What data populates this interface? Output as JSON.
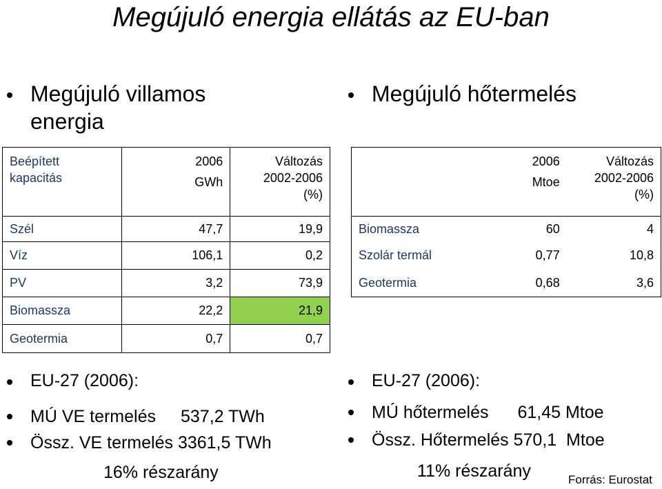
{
  "title": "Megújuló energia ellátás az EU-ban",
  "left": {
    "heading_line1": "Megújuló villamos",
    "heading_line2": "energia",
    "table": {
      "header": {
        "col0_line1": "Beépített",
        "col0_line2": "kapacitás",
        "col1_line1": "2006",
        "col1_line2": "GWh",
        "col2_line1": "Változás",
        "col2_line2": "2002-2006",
        "col2_line3": "(%)"
      },
      "rows": [
        {
          "label": "Szél",
          "value": "47,7",
          "change": "19,9"
        },
        {
          "label": "Víz",
          "value": "106,1",
          "change": "0,2"
        },
        {
          "label": "PV",
          "value": "3,2",
          "change": "73,9"
        },
        {
          "label": "Biomassza",
          "value": "22,2",
          "change": "21,9"
        },
        {
          "label": "Geotermia",
          "value": "0,7",
          "change": "0,7"
        }
      ]
    },
    "eu_heading": "EU-27 (2006):",
    "line1_label": "MÚ VE termelés",
    "line1_value": "537,2 TWh",
    "line2": "Össz. VE termelés 3361,5 TWh",
    "share": "16% részarány"
  },
  "right": {
    "heading": "Megújuló hőtermelés",
    "table": {
      "header": {
        "col1_line1": "2006",
        "col1_line2": "Mtoe",
        "col2_line1": "Változás",
        "col2_line2": "2002-2006",
        "col2_line3": "(%)"
      },
      "rows": [
        {
          "label": "Biomassza",
          "value": "60",
          "change": "4"
        },
        {
          "label": "Szolár termál",
          "value": "0,77",
          "change": "10,8"
        },
        {
          "label": "Geotermia",
          "value": "0,68",
          "change": "3,6"
        }
      ]
    },
    "eu_heading": "EU-27 (2006):",
    "line1_label": "MÚ hőtermelés",
    "line1_value": "61,45 Mtoe",
    "line2": "Össz. Hőtermelés 570,1  Mtoe",
    "share": "11% részarány"
  },
  "source": "Forrás: Eurostat",
  "colors": {
    "highlight": "#92d050",
    "label_text": "#1f3864"
  }
}
